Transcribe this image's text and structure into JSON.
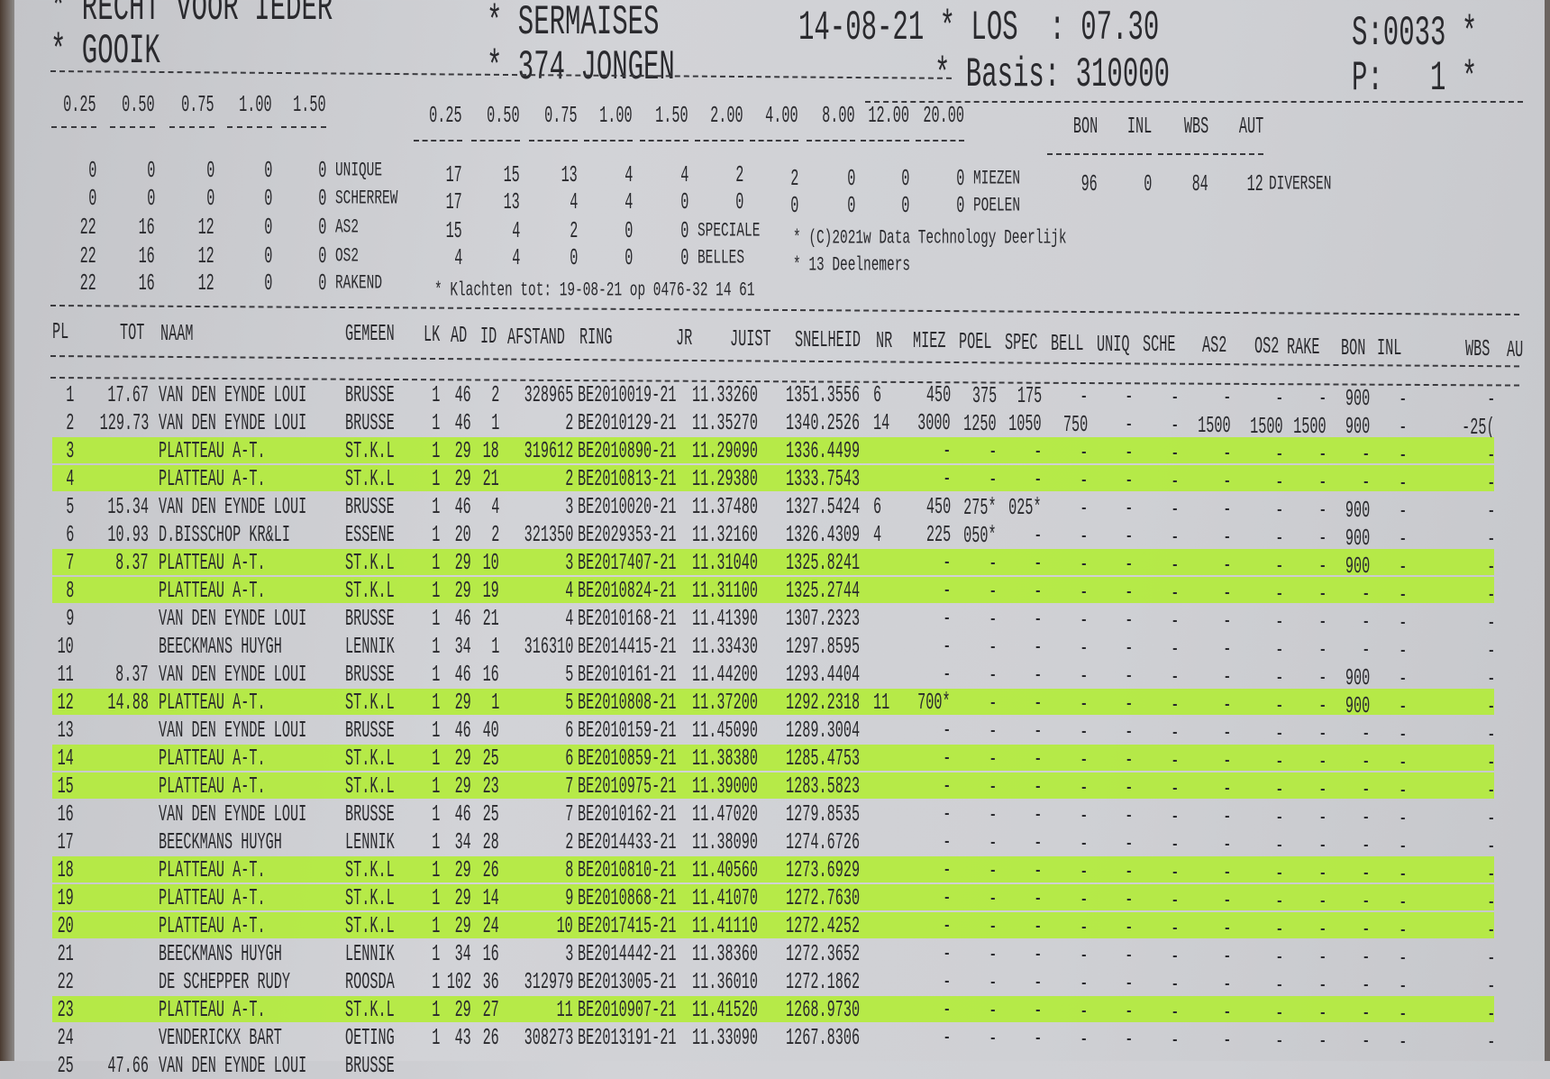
{
  "header": {
    "club": "* RECHT VOOR IEDER",
    "place": "* GOOIK",
    "release_site": "* SERMAISES",
    "category": "* 374 JONGEN",
    "date_los": "14-08-21 * LOS  : 07.30",
    "basis": "* Basis: 310000",
    "serial": "S:0033 *",
    "page": "P:   1 *"
  },
  "summary": {
    "left_headers": [
      "0.25",
      "0.50",
      "0.75",
      "1.00",
      "1.50"
    ],
    "left_rows": [
      {
        "values": [
          "0",
          "0",
          "0",
          "0",
          "0"
        ],
        "label": "UNIQUE"
      },
      {
        "values": [
          "0",
          "0",
          "0",
          "0",
          "0"
        ],
        "label": "SCHERREW"
      },
      {
        "values": [
          "22",
          "16",
          "12",
          "0",
          "0"
        ],
        "label": "AS2"
      },
      {
        "values": [
          "22",
          "16",
          "12",
          "0",
          "0"
        ],
        "label": "OS2"
      },
      {
        "values": [
          "22",
          "16",
          "12",
          "0",
          "0"
        ],
        "label": "RAKEND"
      }
    ],
    "mid_headers": [
      "0.25",
      "0.50",
      "0.75",
      "1.00",
      "1.50",
      "2.00",
      "4.00",
      "8.00",
      "12.00",
      "20.00"
    ],
    "mid_rows": [
      {
        "values": [
          "17",
          "15",
          "13",
          "4",
          "4",
          "2",
          "2",
          "0",
          "0",
          "0"
        ],
        "label": "MIEZEN"
      },
      {
        "values": [
          "17",
          "13",
          "4",
          "4",
          "0",
          "0",
          "0",
          "0",
          "0",
          "0"
        ],
        "label": "POELEN"
      },
      {
        "values": [
          "15",
          "4",
          "2",
          "0",
          "0"
        ],
        "label": "SPECIALE"
      },
      {
        "values": [
          "4",
          "4",
          "0",
          "0",
          "0"
        ],
        "label": "BELLES"
      }
    ],
    "right_headers": [
      "BON",
      "INL",
      "WBS",
      "AUT"
    ],
    "right_values": [
      "96",
      "0",
      "84",
      "12"
    ],
    "right_label": "DIVERSEN",
    "copyright": "* (C)2021w Data Technology Deerlijk",
    "participants": "* 13 Deelnemers",
    "complaints": "* Klachten tot: 19-08-21 op 0476-32 14 61"
  },
  "table": {
    "columns": [
      "PL",
      "TOT",
      "NAAM",
      "GEMEEN",
      "LK",
      "AD",
      "ID",
      "AFSTAND",
      "RING",
      "JR",
      "JUIST",
      "SNELHEID",
      "NR",
      "MIEZ",
      "POEL",
      "SPEC",
      "BELL",
      "UNIQ",
      "SCHE",
      "AS2",
      "OS2",
      "RAKE",
      "BON",
      "INL",
      "WBS",
      "AU"
    ],
    "highlight_color": "#b3ec3c",
    "highlighted_rows": [
      3,
      4,
      7,
      8,
      12,
      14,
      15,
      18,
      19,
      20,
      23
    ],
    "rows": [
      [
        "1",
        "17.67",
        "VAN DEN EYNDE LOUI",
        "BRUSSE",
        "1",
        "46",
        "2",
        "328965",
        "BE2010019-21",
        "11.33260",
        "1351.3556",
        "6",
        "450",
        "375",
        "175",
        "-",
        "-",
        "-",
        "-",
        "-",
        "-",
        "900",
        "-",
        "-"
      ],
      [
        "2",
        "129.73",
        "VAN DEN EYNDE LOUI",
        "BRUSSE",
        "1",
        "46",
        "1",
        "2",
        "BE2010129-21",
        "11.35270",
        "1340.2526",
        "14",
        "3000",
        "1250",
        "1050",
        "750",
        "-",
        "-",
        "1500",
        "1500",
        "1500",
        "900",
        "-",
        "-25("
      ],
      [
        "3",
        "",
        "PLATTEAU A-T.",
        "ST.K.L",
        "1",
        "29",
        "18",
        "319612",
        "BE2010890-21",
        "11.29090",
        "1336.4499",
        "",
        "-",
        "-",
        "-",
        "-",
        "-",
        "-",
        "-",
        "-",
        "-",
        "-",
        "-",
        "-"
      ],
      [
        "4",
        "",
        "PLATTEAU A-T.",
        "ST.K.L",
        "1",
        "29",
        "21",
        "2",
        "BE2010813-21",
        "11.29380",
        "1333.7543",
        "",
        "-",
        "-",
        "-",
        "-",
        "-",
        "-",
        "-",
        "-",
        "-",
        "-",
        "-",
        "-"
      ],
      [
        "5",
        "15.34",
        "VAN DEN EYNDE LOUI",
        "BRUSSE",
        "1",
        "46",
        "4",
        "3",
        "BE2010020-21",
        "11.37480",
        "1327.5424",
        "6",
        "450",
        "275*",
        "025*",
        "-",
        "-",
        "-",
        "-",
        "-",
        "-",
        "900",
        "-",
        "-"
      ],
      [
        "6",
        "10.93",
        "D.BISSCHOP KR&LI",
        "ESSENE",
        "1",
        "20",
        "2",
        "321350",
        "BE2029353-21",
        "11.32160",
        "1326.4309",
        "4",
        "225",
        "050*",
        "-",
        "-",
        "-",
        "-",
        "-",
        "-",
        "-",
        "900",
        "-",
        "-"
      ],
      [
        "7",
        "8.37",
        "PLATTEAU A-T.",
        "ST.K.L",
        "1",
        "29",
        "10",
        "3",
        "BE2017407-21",
        "11.31040",
        "1325.8241",
        "",
        "-",
        "-",
        "-",
        "-",
        "-",
        "-",
        "-",
        "-",
        "-",
        "900",
        "-",
        "-"
      ],
      [
        "8",
        "",
        "PLATTEAU A-T.",
        "ST.K.L",
        "1",
        "29",
        "19",
        "4",
        "BE2010824-21",
        "11.31100",
        "1325.2744",
        "",
        "-",
        "-",
        "-",
        "-",
        "-",
        "-",
        "-",
        "-",
        "-",
        "-",
        "-",
        "-"
      ],
      [
        "9",
        "",
        "VAN DEN EYNDE LOUI",
        "BRUSSE",
        "1",
        "46",
        "21",
        "4",
        "BE2010168-21",
        "11.41390",
        "1307.2323",
        "",
        "-",
        "-",
        "-",
        "-",
        "-",
        "-",
        "-",
        "-",
        "-",
        "-",
        "-",
        "-"
      ],
      [
        "10",
        "",
        "BEECKMANS HUYGH",
        "LENNIK",
        "1",
        "34",
        "1",
        "316310",
        "BE2014415-21",
        "11.33430",
        "1297.8595",
        "",
        "-",
        "-",
        "-",
        "-",
        "-",
        "-",
        "-",
        "-",
        "-",
        "-",
        "-",
        "-"
      ],
      [
        "11",
        "8.37",
        "VAN DEN EYNDE LOUI",
        "BRUSSE",
        "1",
        "46",
        "16",
        "5",
        "BE2010161-21",
        "11.44200",
        "1293.4404",
        "",
        "-",
        "-",
        "-",
        "-",
        "-",
        "-",
        "-",
        "-",
        "-",
        "900",
        "-",
        "-"
      ],
      [
        "12",
        "14.88",
        "PLATTEAU A-T.",
        "ST.K.L",
        "1",
        "29",
        "1",
        "5",
        "BE2010808-21",
        "11.37200",
        "1292.2318",
        "11",
        "700*",
        "-",
        "-",
        "-",
        "-",
        "-",
        "-",
        "-",
        "-",
        "900",
        "-",
        "-"
      ],
      [
        "13",
        "",
        "VAN DEN EYNDE LOUI",
        "BRUSSE",
        "1",
        "46",
        "40",
        "6",
        "BE2010159-21",
        "11.45090",
        "1289.3004",
        "",
        "-",
        "-",
        "-",
        "-",
        "-",
        "-",
        "-",
        "-",
        "-",
        "-",
        "-",
        "-"
      ],
      [
        "14",
        "",
        "PLATTEAU A-T.",
        "ST.K.L",
        "1",
        "29",
        "25",
        "6",
        "BE2010859-21",
        "11.38380",
        "1285.4753",
        "",
        "-",
        "-",
        "-",
        "-",
        "-",
        "-",
        "-",
        "-",
        "-",
        "-",
        "-",
        "-"
      ],
      [
        "15",
        "",
        "PLATTEAU A-T.",
        "ST.K.L",
        "1",
        "29",
        "23",
        "7",
        "BE2010975-21",
        "11.39000",
        "1283.5823",
        "",
        "-",
        "-",
        "-",
        "-",
        "-",
        "-",
        "-",
        "-",
        "-",
        "-",
        "-",
        "-"
      ],
      [
        "16",
        "",
        "VAN DEN EYNDE LOUI",
        "BRUSSE",
        "1",
        "46",
        "25",
        "7",
        "BE2010162-21",
        "11.47020",
        "1279.8535",
        "",
        "-",
        "-",
        "-",
        "-",
        "-",
        "-",
        "-",
        "-",
        "-",
        "-",
        "-",
        "-"
      ],
      [
        "17",
        "",
        "BEECKMANS HUYGH",
        "LENNIK",
        "1",
        "34",
        "28",
        "2",
        "BE2014433-21",
        "11.38090",
        "1274.6726",
        "",
        "-",
        "-",
        "-",
        "-",
        "-",
        "-",
        "-",
        "-",
        "-",
        "-",
        "-",
        "-"
      ],
      [
        "18",
        "",
        "PLATTEAU A-T.",
        "ST.K.L",
        "1",
        "29",
        "26",
        "8",
        "BE2010810-21",
        "11.40560",
        "1273.6929",
        "",
        "-",
        "-",
        "-",
        "-",
        "-",
        "-",
        "-",
        "-",
        "-",
        "-",
        "-",
        "-"
      ],
      [
        "19",
        "",
        "PLATTEAU A-T.",
        "ST.K.L",
        "1",
        "29",
        "14",
        "9",
        "BE2010868-21",
        "11.41070",
        "1272.7630",
        "",
        "-",
        "-",
        "-",
        "-",
        "-",
        "-",
        "-",
        "-",
        "-",
        "-",
        "-",
        "-"
      ],
      [
        "20",
        "",
        "PLATTEAU A-T.",
        "ST.K.L",
        "1",
        "29",
        "24",
        "10",
        "BE2017415-21",
        "11.41110",
        "1272.4252",
        "",
        "-",
        "-",
        "-",
        "-",
        "-",
        "-",
        "-",
        "-",
        "-",
        "-",
        "-",
        "-"
      ],
      [
        "21",
        "",
        "BEECKMANS HUYGH",
        "LENNIK",
        "1",
        "34",
        "16",
        "3",
        "BE2014442-21",
        "11.38360",
        "1272.3652",
        "",
        "-",
        "-",
        "-",
        "-",
        "-",
        "-",
        "-",
        "-",
        "-",
        "-",
        "-",
        "-"
      ],
      [
        "22",
        "",
        "DE SCHEPPER RUDY",
        "ROOSDA",
        "1",
        "102",
        "36",
        "312979",
        "BE2013005-21",
        "11.36010",
        "1272.1862",
        "",
        "-",
        "-",
        "-",
        "-",
        "-",
        "-",
        "-",
        "-",
        "-",
        "-",
        "-",
        "-"
      ],
      [
        "23",
        "",
        "PLATTEAU A-T.",
        "ST.K.L",
        "1",
        "29",
        "27",
        "11",
        "BE2010907-21",
        "11.41520",
        "1268.9730",
        "",
        "-",
        "-",
        "-",
        "-",
        "-",
        "-",
        "-",
        "-",
        "-",
        "-",
        "-",
        "-"
      ],
      [
        "24",
        "",
        "VENDERICKX BART",
        "OETING",
        "1",
        "43",
        "26",
        "308273",
        "BE2013191-21",
        "11.33090",
        "1267.8306",
        "",
        "-",
        "-",
        "-",
        "-",
        "-",
        "-",
        "-",
        "-",
        "-",
        "-",
        "-",
        "-"
      ],
      [
        "25",
        "47.66",
        "VAN DEN EYNDE LOUI",
        "BRUSSE",
        "",
        "",
        "",
        "",
        "",
        "",
        "",
        "",
        "",
        "",
        "",
        "",
        "",
        "",
        "",
        "",
        "",
        "",
        "",
        ""
      ]
    ]
  }
}
